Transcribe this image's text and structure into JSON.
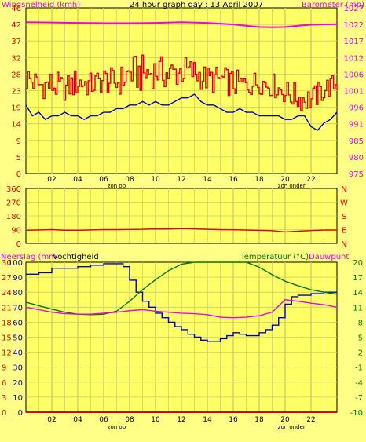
{
  "chart_data": [
    {
      "type": "line",
      "title": "24 hour graph day : 13 April 2007",
      "left_axis_label": "Windsnelheid (kmh)",
      "right_axis_label": "Barometer (mb)",
      "left_ticks": [
        "0",
        "5",
        "9",
        "14",
        "19",
        "23",
        "28",
        "32",
        "37",
        "42",
        "46"
      ],
      "right_ticks": [
        "975",
        "980",
        "985",
        "991",
        "996",
        "1001",
        "1006",
        "1012",
        "1017",
        "1022",
        "1027"
      ],
      "x_ticks": [
        "02",
        "04",
        "06",
        "08",
        "10",
        "12",
        "14",
        "16",
        "18",
        "20",
        "22"
      ],
      "x_annotations": [
        {
          "label": "zon op",
          "x": 7
        },
        {
          "label": "zon onder",
          "x": 20.5
        }
      ],
      "xlim": [
        0,
        24
      ],
      "left_ylim": [
        0,
        46
      ],
      "right_ylim": [
        975,
        1027
      ],
      "series": [
        {
          "axis": "left",
          "style": "step-noisy",
          "x": [
            0,
            1,
            2,
            3,
            4,
            5,
            6,
            7,
            8,
            9,
            10,
            11,
            12,
            13,
            14,
            15,
            16,
            17,
            18,
            19,
            20,
            21,
            22,
            23,
            24
          ],
          "max": [
            31,
            28,
            29,
            27,
            30,
            28,
            30,
            29,
            33,
            33,
            33,
            32,
            33,
            32,
            30,
            30,
            29,
            28,
            29,
            28,
            26,
            25,
            24,
            27,
            28
          ],
          "min": [
            22,
            21,
            20,
            20,
            21,
            21,
            22,
            21,
            23,
            22,
            24,
            23,
            24,
            24,
            22,
            22,
            21,
            21,
            22,
            21,
            19,
            17,
            17,
            20,
            22
          ],
          "color": "#dd0000"
        },
        {
          "axis": "left",
          "style": "line",
          "x": [
            0,
            0.5,
            1,
            1.5,
            2,
            2.5,
            3,
            3.5,
            4,
            4.5,
            5,
            5.5,
            6,
            6.5,
            7,
            7.5,
            8,
            8.5,
            9,
            9.5,
            10,
            10.5,
            11,
            11.5,
            12,
            12.5,
            13,
            13.5,
            14,
            14.5,
            15,
            15.5,
            16,
            16.5,
            17,
            17.5,
            18,
            18.5,
            19,
            19.5,
            20,
            20.5,
            21,
            21.5,
            22,
            22.5,
            23,
            23.5,
            24
          ],
          "y": [
            19,
            16,
            17,
            15,
            16,
            16,
            17,
            16,
            16,
            15,
            16,
            16,
            17,
            17,
            18,
            18,
            19,
            19,
            20,
            19,
            20,
            19,
            19,
            20,
            21,
            21,
            22,
            20,
            19,
            19,
            18,
            17,
            17,
            18,
            17,
            17,
            16,
            16,
            16,
            16,
            15,
            15,
            16,
            16,
            13,
            12,
            14,
            15,
            17
          ],
          "color": "#0000bb"
        },
        {
          "axis": "right",
          "style": "line",
          "x": [
            0,
            2,
            4,
            6,
            8,
            10,
            12,
            14,
            16,
            17,
            18,
            19,
            20,
            21,
            22,
            23,
            24
          ],
          "y": [
            1022.5,
            1022.4,
            1022.3,
            1022.2,
            1022.2,
            1022.3,
            1022.5,
            1022.3,
            1021.8,
            1021.4,
            1021.0,
            1020.9,
            1021.0,
            1021.4,
            1021.7,
            1021.8,
            1021.9
          ],
          "color": "#ee00ee"
        }
      ]
    },
    {
      "type": "line",
      "title": "",
      "left_ticks": [
        "0",
        "90",
        "180",
        "270",
        "360"
      ],
      "right_ticks": [
        "N",
        "E",
        "S",
        "W",
        "N"
      ],
      "xlim": [
        0,
        24
      ],
      "ylim": [
        0,
        360
      ],
      "series": [
        {
          "x": [
            0,
            1,
            2,
            3,
            4,
            5,
            6,
            7,
            8,
            9,
            10,
            11,
            12,
            13,
            14,
            15,
            16,
            17,
            18,
            19,
            20,
            21,
            22,
            23,
            24
          ],
          "y": [
            86,
            88,
            90,
            86,
            86,
            88,
            90,
            90,
            91,
            92,
            95,
            94,
            97,
            95,
            92,
            90,
            89,
            87,
            85,
            83,
            75,
            80,
            84,
            87,
            87
          ],
          "color": "#dd0000"
        }
      ]
    },
    {
      "type": "line",
      "title": "",
      "left_axis_label": "Neerslag (mm",
      "left_axis_label2": "Vochtigheid",
      "right_axis_label": "Temperatuur (°C)",
      "right_axis_label2": "Dauwpunt",
      "left_ticks_rain": [
        "0",
        "3",
        "6",
        "9",
        "12",
        "15",
        "18",
        "21",
        "24",
        "27",
        "30"
      ],
      "left_ticks_hum": [
        "0",
        "10",
        "20",
        "30",
        "40",
        "50",
        "60",
        "70",
        "80",
        "90",
        "100"
      ],
      "right_ticks": [
        "-10",
        "-7",
        "-4",
        "-1",
        "2",
        "5",
        "8",
        "11",
        "14",
        "17",
        "20"
      ],
      "x_ticks": [
        "02",
        "04",
        "06",
        "08",
        "10",
        "12",
        "14",
        "16",
        "18",
        "20",
        "22"
      ],
      "x_annotations": [
        {
          "label": "zon op",
          "x": 7
        },
        {
          "label": "zon onder",
          "x": 20.5
        }
      ],
      "xlim": [
        0,
        24
      ],
      "hum_ylim": [
        0,
        100
      ],
      "temp_ylim": [
        -10,
        20
      ],
      "series": [
        {
          "name": "Vochtigheid",
          "axis": "left",
          "x": [
            0,
            1,
            2,
            3,
            4,
            5,
            6,
            6.5,
            7,
            7.5,
            8,
            8.5,
            9,
            9.5,
            10,
            10.5,
            11,
            11.5,
            12,
            12.5,
            13,
            13.5,
            14,
            14.5,
            15,
            15.5,
            16,
            16.5,
            17,
            17.5,
            18,
            18.5,
            19,
            19.5,
            20,
            20.5,
            21,
            22,
            23,
            24
          ],
          "y": [
            92,
            93,
            96,
            96,
            97,
            98,
            99,
            99,
            99,
            97,
            88,
            80,
            74,
            70,
            66,
            63,
            60,
            57,
            55,
            52,
            50,
            48,
            47,
            47,
            49,
            51,
            53,
            52,
            51,
            51,
            53,
            55,
            58,
            63,
            72,
            77,
            78,
            79,
            80,
            80
          ],
          "color": "#0000bb"
        },
        {
          "name": "Temperatuur",
          "axis": "right",
          "x": [
            0,
            1,
            2,
            3,
            4,
            5,
            6,
            7,
            8,
            9,
            10,
            11,
            12,
            13,
            14,
            15,
            16,
            17,
            18,
            19,
            20,
            21,
            22,
            23,
            24
          ],
          "y": [
            12.0,
            11.3,
            10.6,
            10.0,
            9.6,
            9.5,
            9.6,
            10.2,
            12.2,
            14.5,
            16.5,
            18.3,
            19.6,
            20.0,
            20.0,
            20.0,
            20.0,
            20.0,
            19.0,
            17.5,
            16.2,
            15.3,
            14.5,
            14.0,
            13.6
          ],
          "color": "#007700"
        },
        {
          "name": "Dauwpunt",
          "axis": "right",
          "x": [
            0,
            1,
            2,
            3,
            4,
            5,
            6,
            7,
            8,
            9,
            10,
            11,
            12,
            13,
            14,
            15,
            16,
            17,
            18,
            19,
            20,
            21,
            22,
            23,
            24
          ],
          "y": [
            11.0,
            10.5,
            10.0,
            9.7,
            9.6,
            9.6,
            9.8,
            10.0,
            10.3,
            10.5,
            10.2,
            10.0,
            9.8,
            9.7,
            9.5,
            9.0,
            8.9,
            9.0,
            9.3,
            10.0,
            12.5,
            12.2,
            11.8,
            11.5,
            11.0
          ],
          "color": "#ee00ee"
        },
        {
          "name": "Neerslag",
          "axis": "left",
          "x": [
            0,
            24
          ],
          "y": [
            0,
            0
          ],
          "color": "#dd0000"
        }
      ]
    }
  ]
}
